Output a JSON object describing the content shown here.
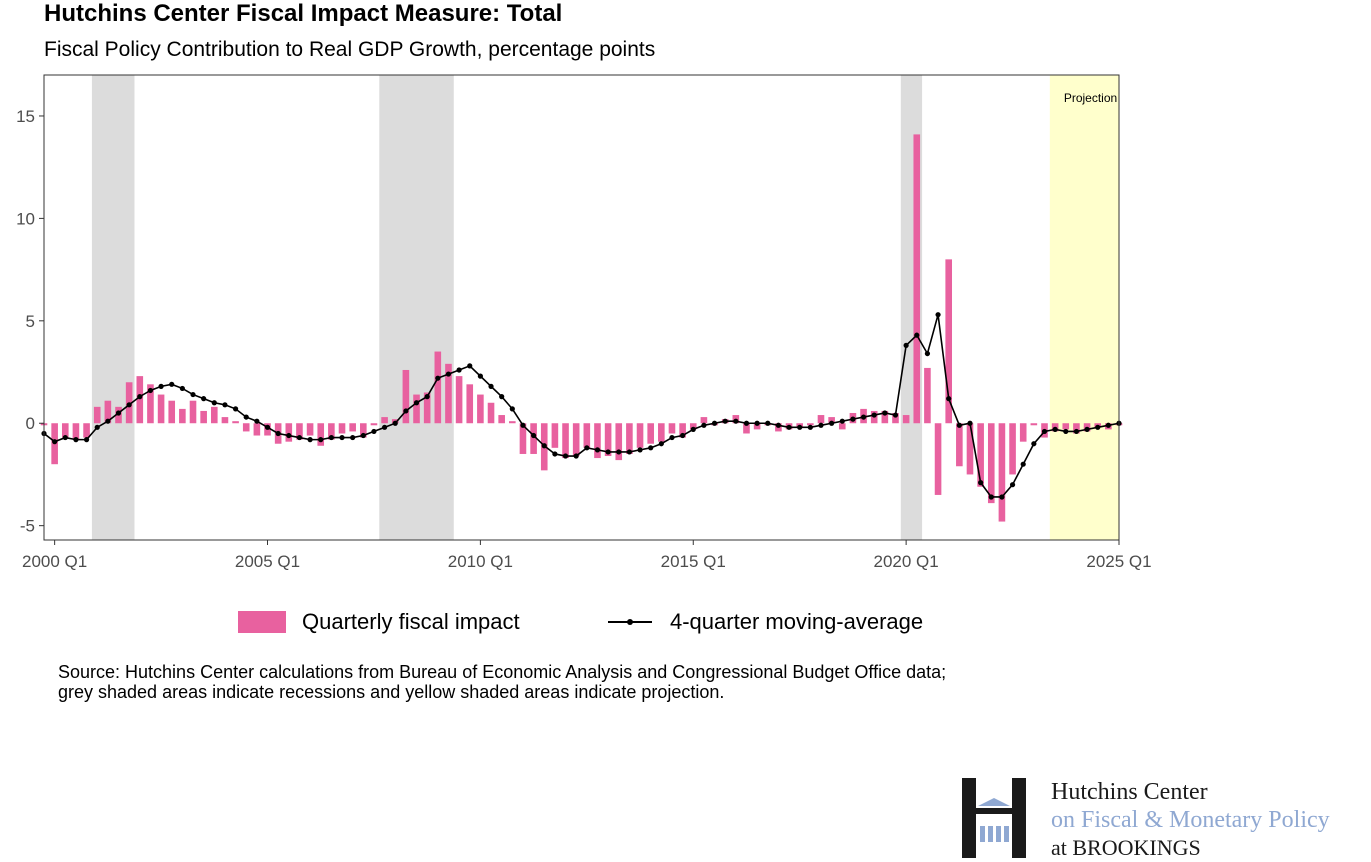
{
  "chart_data": {
    "type": "bar",
    "title": "Hutchins Center Fiscal Impact Measure: Total",
    "subtitle": "Fiscal Policy Contribution to Real GDP Growth, percentage points",
    "x_tick_labels": [
      "2000 Q1",
      "2005 Q1",
      "2010 Q1",
      "2015 Q1",
      "2020 Q1",
      "2025 Q1"
    ],
    "y_ticks": [
      -5,
      0,
      5,
      10,
      15
    ],
    "ylim": [
      -5.7,
      17
    ],
    "x_range": [
      "1999 Q4",
      "2025 Q1"
    ],
    "grid": false,
    "categories": [
      "1999 Q4",
      "2000 Q1",
      "2000 Q2",
      "2000 Q3",
      "2000 Q4",
      "2001 Q1",
      "2001 Q2",
      "2001 Q3",
      "2001 Q4",
      "2002 Q1",
      "2002 Q2",
      "2002 Q3",
      "2002 Q4",
      "2003 Q1",
      "2003 Q2",
      "2003 Q3",
      "2003 Q4",
      "2004 Q1",
      "2004 Q2",
      "2004 Q3",
      "2004 Q4",
      "2005 Q1",
      "2005 Q2",
      "2005 Q3",
      "2005 Q4",
      "2006 Q1",
      "2006 Q2",
      "2006 Q3",
      "2006 Q4",
      "2007 Q1",
      "2007 Q2",
      "2007 Q3",
      "2007 Q4",
      "2008 Q1",
      "2008 Q2",
      "2008 Q3",
      "2008 Q4",
      "2009 Q1",
      "2009 Q2",
      "2009 Q3",
      "2009 Q4",
      "2010 Q1",
      "2010 Q2",
      "2010 Q3",
      "2010 Q4",
      "2011 Q1",
      "2011 Q2",
      "2011 Q3",
      "2011 Q4",
      "2012 Q1",
      "2012 Q2",
      "2012 Q3",
      "2012 Q4",
      "2013 Q1",
      "2013 Q2",
      "2013 Q3",
      "2013 Q4",
      "2014 Q1",
      "2014 Q2",
      "2014 Q3",
      "2014 Q4",
      "2015 Q1",
      "2015 Q2",
      "2015 Q3",
      "2015 Q4",
      "2016 Q1",
      "2016 Q2",
      "2016 Q3",
      "2016 Q4",
      "2017 Q1",
      "2017 Q2",
      "2017 Q3",
      "2017 Q4",
      "2018 Q1",
      "2018 Q2",
      "2018 Q3",
      "2018 Q4",
      "2019 Q1",
      "2019 Q2",
      "2019 Q3",
      "2019 Q4",
      "2020 Q1",
      "2020 Q2",
      "2020 Q3",
      "2020 Q4",
      "2021 Q1",
      "2021 Q2",
      "2021 Q3",
      "2021 Q4",
      "2022 Q1",
      "2022 Q2",
      "2022 Q3",
      "2022 Q4",
      "2023 Q1",
      "2023 Q2",
      "2023 Q3",
      "2023 Q4",
      "2024 Q1",
      "2024 Q2",
      "2024 Q3",
      "2024 Q4",
      "2025 Q1"
    ],
    "series": [
      {
        "name": "Quarterly fiscal impact",
        "type": "bar",
        "color": "#e8619f",
        "values": [
          -0.1,
          -2.0,
          -0.7,
          -0.8,
          -0.7,
          0.8,
          1.1,
          0.8,
          2.0,
          2.3,
          1.9,
          1.4,
          1.1,
          0.7,
          1.1,
          0.6,
          0.8,
          0.3,
          0.1,
          -0.4,
          -0.6,
          -0.6,
          -1.0,
          -0.9,
          -0.8,
          -0.6,
          -1.1,
          -0.8,
          -0.5,
          -0.4,
          -0.7,
          -0.1,
          0.3,
          0.2,
          2.6,
          1.4,
          1.5,
          3.5,
          2.9,
          2.3,
          1.9,
          1.4,
          1.0,
          0.4,
          0.1,
          -1.5,
          -1.5,
          -2.3,
          -1.2,
          -1.7,
          -1.6,
          -1.2,
          -1.7,
          -1.6,
          -1.8,
          -1.5,
          -1.2,
          -1.0,
          -0.9,
          -0.5,
          -0.7,
          -0.3,
          0.3,
          -0.1,
          0.2,
          0.4,
          -0.5,
          -0.3,
          -0.1,
          -0.4,
          -0.3,
          -0.2,
          -0.1,
          0.4,
          0.3,
          -0.3,
          0.5,
          0.7,
          0.6,
          0.6,
          0.5,
          0.4,
          14.1,
          2.7,
          -3.5,
          8.0,
          -2.1,
          -2.5,
          -3.1,
          -3.9,
          -4.8,
          -2.5,
          -0.9,
          -0.1,
          -0.7,
          -0.4,
          -0.3,
          -0.5,
          -0.4,
          -0.2,
          -0.3,
          -0.1
        ]
      },
      {
        "name": "4-quarter moving-average",
        "type": "line",
        "color": "#000000",
        "values": [
          -0.5,
          -0.9,
          -0.7,
          -0.8,
          -0.8,
          -0.2,
          0.1,
          0.5,
          0.9,
          1.3,
          1.6,
          1.8,
          1.9,
          1.7,
          1.4,
          1.2,
          1.0,
          0.9,
          0.7,
          0.3,
          0.1,
          -0.2,
          -0.5,
          -0.6,
          -0.7,
          -0.8,
          -0.8,
          -0.7,
          -0.7,
          -0.7,
          -0.6,
          -0.4,
          -0.2,
          0.0,
          0.6,
          1.0,
          1.3,
          2.2,
          2.4,
          2.6,
          2.8,
          2.3,
          1.8,
          1.3,
          0.7,
          -0.1,
          -0.6,
          -1.1,
          -1.5,
          -1.6,
          -1.6,
          -1.2,
          -1.3,
          -1.4,
          -1.4,
          -1.4,
          -1.3,
          -1.2,
          -1.0,
          -0.7,
          -0.6,
          -0.3,
          -0.1,
          0.0,
          0.1,
          0.1,
          0.0,
          0.0,
          0.0,
          -0.1,
          -0.2,
          -0.2,
          -0.2,
          -0.1,
          0.0,
          0.1,
          0.2,
          0.3,
          0.4,
          0.5,
          0.4,
          3.8,
          4.3,
          3.4,
          5.3,
          1.2,
          -0.1,
          0.0,
          -2.9,
          -3.6,
          -3.6,
          -3.0,
          -2.0,
          -1.0,
          -0.4,
          -0.3,
          -0.4,
          -0.4,
          -0.3,
          -0.2,
          -0.1,
          0.0
        ]
      }
    ],
    "recession_shading": [
      [
        "2001 Q1",
        "2001 Q4"
      ],
      [
        "2007 Q4",
        "2009 Q2"
      ],
      [
        "2020 Q1",
        "2020 Q2"
      ]
    ],
    "projection_shading": [
      "2023 Q3",
      "2025 Q1"
    ],
    "projection_label": "Projection",
    "colors": {
      "bars": "#e8619f",
      "line": "#000000",
      "recession": "#dcdcdc",
      "projection": "#ffffcc"
    }
  },
  "legend": {
    "bar_label": "Quarterly fiscal impact",
    "line_label": "4-quarter moving-average"
  },
  "source_text": {
    "line1": "Source: Hutchins Center calculations from Bureau of Economic Analysis and Congressional Budget Office data;",
    "line2": "grey shaded areas indicate recessions and yellow shaded areas indicate projection."
  },
  "logo": {
    "line1": "Hutchins Center",
    "line2": "on Fiscal & Monetary Policy",
    "line3": "at BROOKINGS",
    "mark_color": "#1a1a1a",
    "accent_color": "#8fa8d2"
  }
}
